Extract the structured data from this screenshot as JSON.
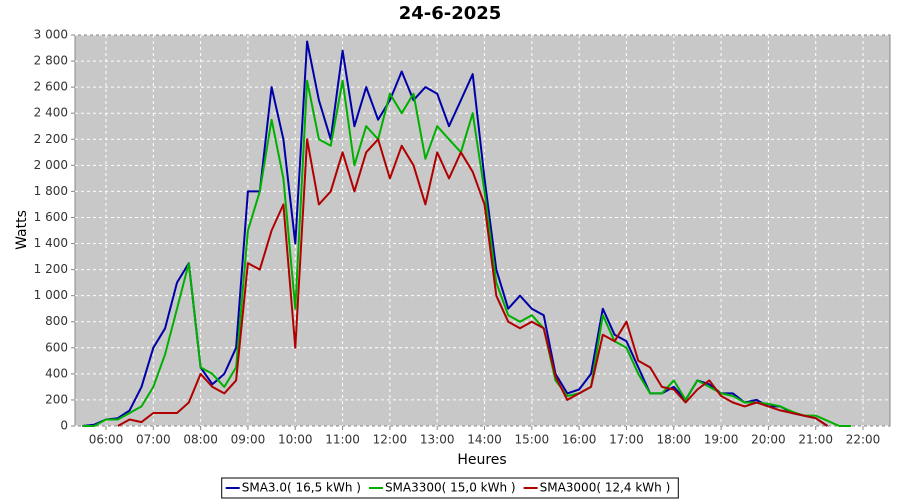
{
  "chart_data": {
    "type": "line",
    "title": "24-6-2025",
    "x_label": "Heures",
    "y_label": "Watts",
    "x": [
      5.5,
      5.75,
      6,
      6.25,
      6.5,
      6.75,
      7,
      7.25,
      7.5,
      7.75,
      8,
      8.25,
      8.5,
      8.75,
      9,
      9.25,
      9.5,
      9.75,
      10,
      10.25,
      10.5,
      10.75,
      11,
      11.25,
      11.5,
      11.75,
      12,
      12.25,
      12.5,
      12.75,
      13,
      13.25,
      13.5,
      13.75,
      14,
      14.25,
      14.5,
      14.75,
      15,
      15.25,
      15.5,
      15.75,
      16,
      16.25,
      16.5,
      16.75,
      17,
      17.25,
      17.5,
      17.75,
      18,
      18.25,
      18.5,
      18.75,
      19,
      19.25,
      19.5,
      19.75,
      20,
      20.25,
      20.5,
      20.75,
      21,
      21.25,
      21.5,
      21.75
    ],
    "series": [
      {
        "name": "SMA3.0( 16,5 kWh )",
        "color": "#0000a8",
        "values": [
          0,
          10,
          50,
          60,
          120,
          300,
          600,
          750,
          1100,
          1250,
          450,
          320,
          400,
          600,
          1800,
          1800,
          2600,
          2200,
          1400,
          2950,
          2500,
          2200,
          2880,
          2300,
          2600,
          2350,
          2500,
          2720,
          2500,
          2600,
          2550,
          2300,
          2500,
          2700,
          1900,
          1200,
          900,
          1000,
          900,
          850,
          400,
          250,
          280,
          400,
          900,
          700,
          650,
          450,
          250,
          250,
          300,
          200,
          350,
          320,
          250,
          250,
          180,
          200,
          150,
          150,
          100,
          80,
          60,
          0,
          null,
          null
        ]
      },
      {
        "name": "SMA3300( 15,0 kWh )",
        "color": "#00b000",
        "values": [
          0,
          0,
          50,
          50,
          100,
          150,
          300,
          550,
          900,
          1250,
          450,
          400,
          300,
          450,
          1500,
          1800,
          2350,
          1900,
          900,
          2650,
          2200,
          2150,
          2650,
          2000,
          2300,
          2200,
          2550,
          2400,
          2550,
          2050,
          2300,
          2200,
          2100,
          2400,
          1800,
          1100,
          850,
          800,
          850,
          750,
          350,
          230,
          250,
          300,
          850,
          650,
          600,
          400,
          250,
          250,
          350,
          200,
          350,
          300,
          250,
          230,
          180,
          180,
          170,
          150,
          110,
          80,
          80,
          40,
          0,
          0
        ]
      },
      {
        "name": "SMA3000( 12,4 kWh )",
        "color": "#b00000",
        "values": [
          null,
          null,
          null,
          0,
          50,
          30,
          100,
          100,
          100,
          180,
          400,
          300,
          250,
          350,
          1250,
          1200,
          1500,
          1700,
          600,
          2200,
          1700,
          1800,
          2100,
          1800,
          2100,
          2200,
          1900,
          2150,
          2000,
          1700,
          2100,
          1900,
          2100,
          1950,
          1700,
          1000,
          800,
          750,
          800,
          750,
          380,
          200,
          250,
          300,
          700,
          650,
          800,
          500,
          450,
          300,
          280,
          180,
          280,
          350,
          230,
          180,
          150,
          180,
          150,
          120,
          100,
          80,
          60,
          0,
          null,
          null
        ]
      }
    ],
    "xlim": [
      5.345,
      22.57
    ],
    "xticks": [
      {
        "value": 6,
        "label": "06:00"
      },
      {
        "value": 7,
        "label": "07:00"
      },
      {
        "value": 8,
        "label": "08:00"
      },
      {
        "value": 9,
        "label": "09:00"
      },
      {
        "value": 10,
        "label": "10:00"
      },
      {
        "value": 11,
        "label": "11:00"
      },
      {
        "value": 12,
        "label": "12:00"
      },
      {
        "value": 13,
        "label": "13:00"
      },
      {
        "value": 14,
        "label": "14:00"
      },
      {
        "value": 15,
        "label": "15:00"
      },
      {
        "value": 16,
        "label": "16:00"
      },
      {
        "value": 17,
        "label": "17:00"
      },
      {
        "value": 18,
        "label": "18:00"
      },
      {
        "value": 19,
        "label": "19:00"
      },
      {
        "value": 20,
        "label": "20:00"
      },
      {
        "value": 21,
        "label": "21:00"
      },
      {
        "value": 22,
        "label": "22:00"
      }
    ],
    "ylim": [
      0,
      3000
    ],
    "yticks": [
      0,
      200,
      400,
      600,
      800,
      {
        "value": 1000,
        "label": "1 000"
      },
      {
        "value": 1200,
        "label": "1 200"
      },
      {
        "value": 1400,
        "label": "1 400"
      },
      {
        "value": 1600,
        "label": "1 600"
      },
      {
        "value": 1800,
        "label": "1 800"
      },
      {
        "value": 2000,
        "label": "2 000"
      },
      {
        "value": 2200,
        "label": "2 200"
      },
      {
        "value": 2400,
        "label": "2 400"
      },
      {
        "value": 2600,
        "label": "2 600"
      },
      {
        "value": 2800,
        "label": "2 800"
      },
      {
        "value": 3000,
        "label": "3 000"
      }
    ],
    "grid": true,
    "legend": "bottom"
  }
}
